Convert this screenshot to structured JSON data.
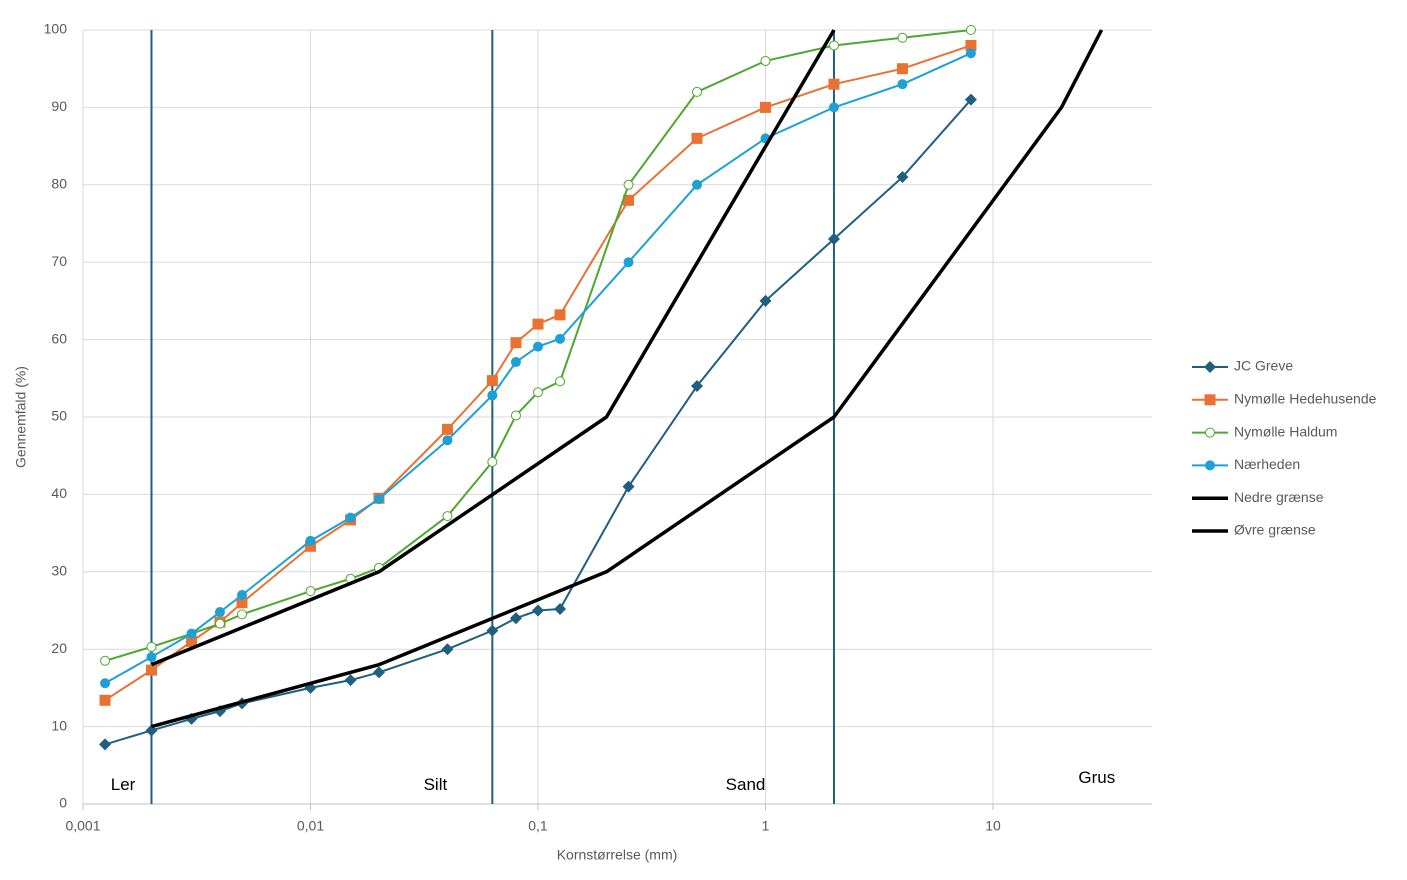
{
  "chart_data": {
    "type": "line",
    "x_label": "Kornstørrelse (mm)",
    "y_label": "Gennemfald (%)",
    "log_x": true,
    "grid": true,
    "legend": "right",
    "xlim": [
      0.001,
      50
    ],
    "ylim": [
      0,
      100
    ],
    "xticks": [
      {
        "value": 0.001,
        "label": "0,001"
      },
      {
        "value": 0.01,
        "label": "0,01"
      },
      {
        "value": 0.1,
        "label": "0,1"
      },
      1,
      10
    ],
    "yticks": [
      0,
      10,
      20,
      30,
      40,
      50,
      60,
      70,
      80,
      90,
      100
    ],
    "boundaries": {
      "color": "#1f5f7f",
      "x": [
        0.002,
        0.063,
        2
      ]
    },
    "annotations": [
      {
        "text": "Ler",
        "x": 0.0015,
        "y": 2.4
      },
      {
        "text": "Silt",
        "x": 0.0354,
        "y": 2.4
      },
      {
        "text": "Sand",
        "x": 0.817,
        "y": 2.4
      },
      {
        "text": "Grus",
        "x": 28.6,
        "y": 3.3
      }
    ],
    "series": [
      {
        "name": "JC Greve",
        "color": "#1f5f7f",
        "marker": "diamond",
        "x": [
          0.00125,
          0.002,
          0.003,
          0.004,
          0.005,
          0.01,
          0.015,
          0.02,
          0.04,
          0.063,
          0.08,
          0.1,
          0.125,
          0.25,
          0.5,
          1,
          2,
          4,
          8
        ],
        "values": [
          7.7,
          9.5,
          11,
          12,
          13,
          15,
          16,
          17,
          20,
          22.4,
          24,
          25,
          25.2,
          41,
          54,
          65,
          73,
          81,
          91
        ]
      },
      {
        "name": "Nymølle Hedehusende",
        "color": "#e97132",
        "marker": "square",
        "x": [
          0.00125,
          0.002,
          0.003,
          0.004,
          0.005,
          0.01,
          0.015,
          0.02,
          0.04,
          0.063,
          0.08,
          0.1,
          0.125,
          0.25,
          0.5,
          1,
          2,
          4,
          8
        ],
        "values": [
          13.4,
          17.3,
          21,
          23.5,
          26,
          33.3,
          36.7,
          39.5,
          48.4,
          54.7,
          59.6,
          62,
          63.2,
          78,
          86,
          90,
          93,
          95,
          98
        ]
      },
      {
        "name": "Nymølle Haldum",
        "color": "#4ea72e",
        "marker": "open-circle",
        "x": [
          0.00125,
          0.002,
          0.003,
          0.004,
          0.005,
          0.01,
          0.015,
          0.02,
          0.04,
          0.063,
          0.08,
          0.1,
          0.125,
          0.25,
          0.5,
          1,
          2,
          4,
          8
        ],
        "values": [
          18.5,
          20.3,
          22,
          23.3,
          24.5,
          27.5,
          29.1,
          30.5,
          37.2,
          44.2,
          50.2,
          53.2,
          54.6,
          80,
          92,
          96,
          98,
          99,
          100
        ]
      },
      {
        "name": "Nærheden",
        "color": "#1ea0d4",
        "marker": "circle",
        "x": [
          0.00125,
          0.002,
          0.003,
          0.004,
          0.005,
          0.01,
          0.015,
          0.02,
          0.04,
          0.063,
          0.08,
          0.1,
          0.125,
          0.25,
          0.5,
          1,
          2,
          4,
          8
        ],
        "values": [
          15.6,
          19,
          22,
          24.8,
          27,
          34,
          37,
          39.4,
          47,
          52.8,
          57.1,
          59.1,
          60.1,
          70,
          80,
          86,
          90,
          93,
          97
        ]
      },
      {
        "name": "Nedre grænse",
        "color": "#000000",
        "marker": "none",
        "x": [
          0.002,
          0.02,
          0.2,
          2
        ],
        "values": [
          18,
          30,
          50,
          100
        ]
      },
      {
        "name": "Øvre grænse",
        "color": "#000000",
        "marker": "none",
        "x": [
          0.002,
          0.02,
          0.2,
          2,
          20,
          30
        ],
        "values": [
          10,
          18,
          30,
          50,
          90,
          100
        ]
      }
    ]
  }
}
